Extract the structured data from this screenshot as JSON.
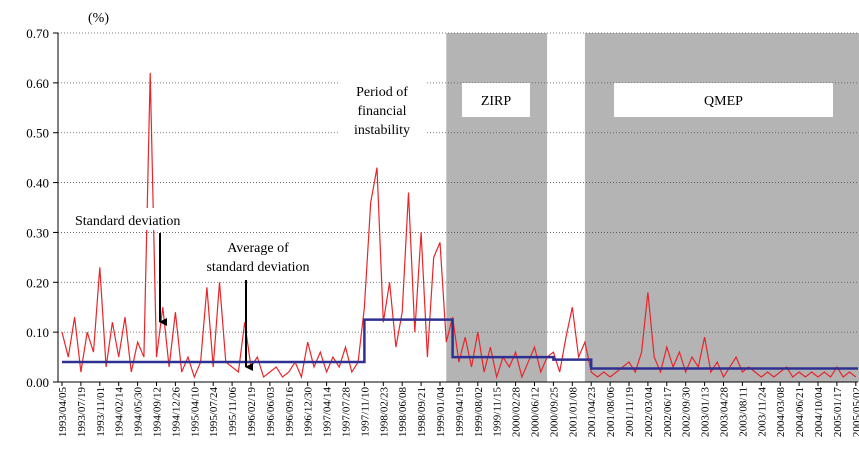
{
  "chart_data": {
    "type": "line",
    "unit_label": "(%)",
    "categories": [
      "1993/04/05",
      null,
      null,
      "1993/07/19",
      null,
      null,
      "1993/11/01",
      null,
      null,
      "1994/02/14",
      null,
      null,
      "1994/05/30",
      null,
      null,
      "1994/09/12",
      null,
      null,
      "1994/12/26",
      null,
      null,
      "1995/04/10",
      null,
      null,
      "1995/07/24",
      null,
      null,
      "1995/11/06",
      null,
      null,
      "1996/02/19",
      null,
      null,
      "1996/06/03",
      null,
      null,
      "1996/09/16",
      null,
      null,
      "1996/12/30",
      null,
      null,
      "1997/04/14",
      null,
      null,
      "1997/07/28",
      null,
      null,
      "1997/11/10",
      null,
      null,
      "1998/02/23",
      null,
      null,
      "1998/06/08",
      null,
      null,
      "1998/09/21",
      null,
      null,
      "1999/01/04",
      null,
      null,
      "1999/04/19",
      null,
      null,
      "1999/08/02",
      null,
      null,
      "1999/11/15",
      null,
      null,
      "2000/02/28",
      null,
      null,
      "2000/06/12",
      null,
      null,
      "2000/09/25",
      null,
      null,
      "2001/01/08",
      null,
      null,
      "2001/04/23",
      null,
      null,
      "2001/08/06",
      null,
      null,
      "2001/11/19",
      null,
      null,
      "2002/03/04",
      null,
      null,
      "2002/06/17",
      null,
      null,
      "2002/09/30",
      null,
      null,
      "2003/01/13",
      null,
      null,
      "2003/04/28",
      null,
      null,
      "2003/08/11",
      null,
      null,
      "2003/11/24",
      null,
      null,
      "2004/03/08",
      null,
      null,
      "2004/06/21",
      null,
      null,
      "2004/10/04",
      null,
      null,
      "2005/01/17",
      null,
      null,
      "2005/05/02"
    ],
    "series": [
      {
        "color": "#e8262a",
        "values": [
          0.1,
          0.05,
          0.13,
          0.02,
          0.1,
          0.06,
          0.23,
          0.03,
          0.12,
          0.05,
          0.13,
          0.02,
          0.08,
          0.05,
          0.62,
          0.05,
          0.15,
          0.03,
          0.14,
          0.02,
          0.05,
          0.01,
          0.04,
          0.19,
          0.03,
          0.2,
          0.04,
          0.03,
          0.02,
          0.12,
          0.03,
          0.05,
          0.01,
          0.02,
          0.03,
          0.01,
          0.02,
          0.04,
          0.01,
          0.08,
          0.03,
          0.06,
          0.02,
          0.05,
          0.03,
          0.07,
          0.02,
          0.04,
          0.15,
          0.36,
          0.43,
          0.12,
          0.2,
          0.07,
          0.14,
          0.38,
          0.1,
          0.3,
          0.05,
          0.25,
          0.28,
          0.08,
          0.13,
          0.04,
          0.09,
          0.03,
          0.1,
          0.02,
          0.07,
          0.01,
          0.05,
          0.03,
          0.06,
          0.01,
          0.04,
          0.07,
          0.02,
          0.05,
          0.06,
          0.02,
          0.09,
          0.15,
          0.05,
          0.08,
          0.02,
          0.01,
          0.02,
          0.01,
          0.02,
          0.03,
          0.04,
          0.02,
          0.06,
          0.18,
          0.05,
          0.02,
          0.07,
          0.03,
          0.06,
          0.02,
          0.05,
          0.03,
          0.09,
          0.02,
          0.04,
          0.01,
          0.03,
          0.05,
          0.02,
          0.03,
          0.02,
          0.01,
          0.02,
          0.01,
          0.02,
          0.03,
          0.01,
          0.02,
          0.01,
          0.02,
          0.01,
          0.02,
          0.01,
          0.03,
          0.01,
          0.02,
          0.01
        ]
      },
      {
        "color": "#2e3192",
        "values": [
          0.04,
          0.04,
          0.04,
          0.04,
          0.04,
          0.04,
          0.04,
          0.04,
          0.04,
          0.04,
          0.04,
          0.04,
          0.04,
          0.04,
          0.04,
          0.04,
          0.04,
          0.04,
          0.04,
          0.04,
          0.04,
          0.04,
          0.04,
          0.04,
          0.04,
          0.04,
          0.04,
          0.04,
          0.04,
          0.04,
          0.04,
          0.04,
          0.04,
          0.04,
          0.04,
          0.04,
          0.04,
          0.04,
          0.04,
          0.04,
          0.04,
          0.04,
          0.04,
          0.04,
          0.04,
          0.04,
          0.04,
          0.04,
          0.125,
          0.125,
          0.125,
          0.125,
          0.125,
          0.125,
          0.125,
          0.125,
          0.125,
          0.125,
          0.125,
          0.125,
          0.125,
          0.125,
          0.05,
          0.05,
          0.05,
          0.05,
          0.05,
          0.05,
          0.05,
          0.05,
          0.05,
          0.05,
          0.05,
          0.05,
          0.05,
          0.05,
          0.05,
          0.05,
          0.045,
          0.045,
          0.045,
          0.045,
          0.045,
          0.045,
          0.027,
          0.027,
          0.027,
          0.027,
          0.027,
          0.027,
          0.027,
          0.027,
          0.027,
          0.027,
          0.027,
          0.027,
          0.027,
          0.027,
          0.027,
          0.027,
          0.027,
          0.027,
          0.027,
          0.027,
          0.027,
          0.027,
          0.027,
          0.027,
          0.027,
          0.027,
          0.027,
          0.027,
          0.027,
          0.027,
          0.027,
          0.027,
          0.027,
          0.027,
          0.027,
          0.027,
          0.027,
          0.027,
          0.027,
          0.027,
          0.027,
          0.027,
          0.027
        ]
      }
    ],
    "regions": [
      {
        "label": "ZIRP",
        "start": 61,
        "end": 77
      },
      {
        "label": "QMEP",
        "start": 83,
        "end": 126
      }
    ],
    "region_color": "#b4b4b4",
    "period_label": [
      "Period of",
      "financial",
      "instability"
    ],
    "sd_label": "Standard deviation",
    "avg_label": [
      "Average of",
      "standard deviation"
    ],
    "ylim": [
      0,
      0.7
    ],
    "yticks": [
      {
        "value": 0,
        "label": "0.00"
      },
      {
        "value": 0.1,
        "label": "0.10"
      },
      {
        "value": 0.2,
        "label": "0.20"
      },
      {
        "value": 0.3,
        "label": "0.30"
      },
      {
        "value": 0.4,
        "label": "0.40"
      },
      {
        "value": 0.5,
        "label": "0.50"
      },
      {
        "value": 0.6,
        "label": "0.60"
      },
      {
        "value": 0.7,
        "label": "0.70"
      }
    ],
    "grid": true
  }
}
